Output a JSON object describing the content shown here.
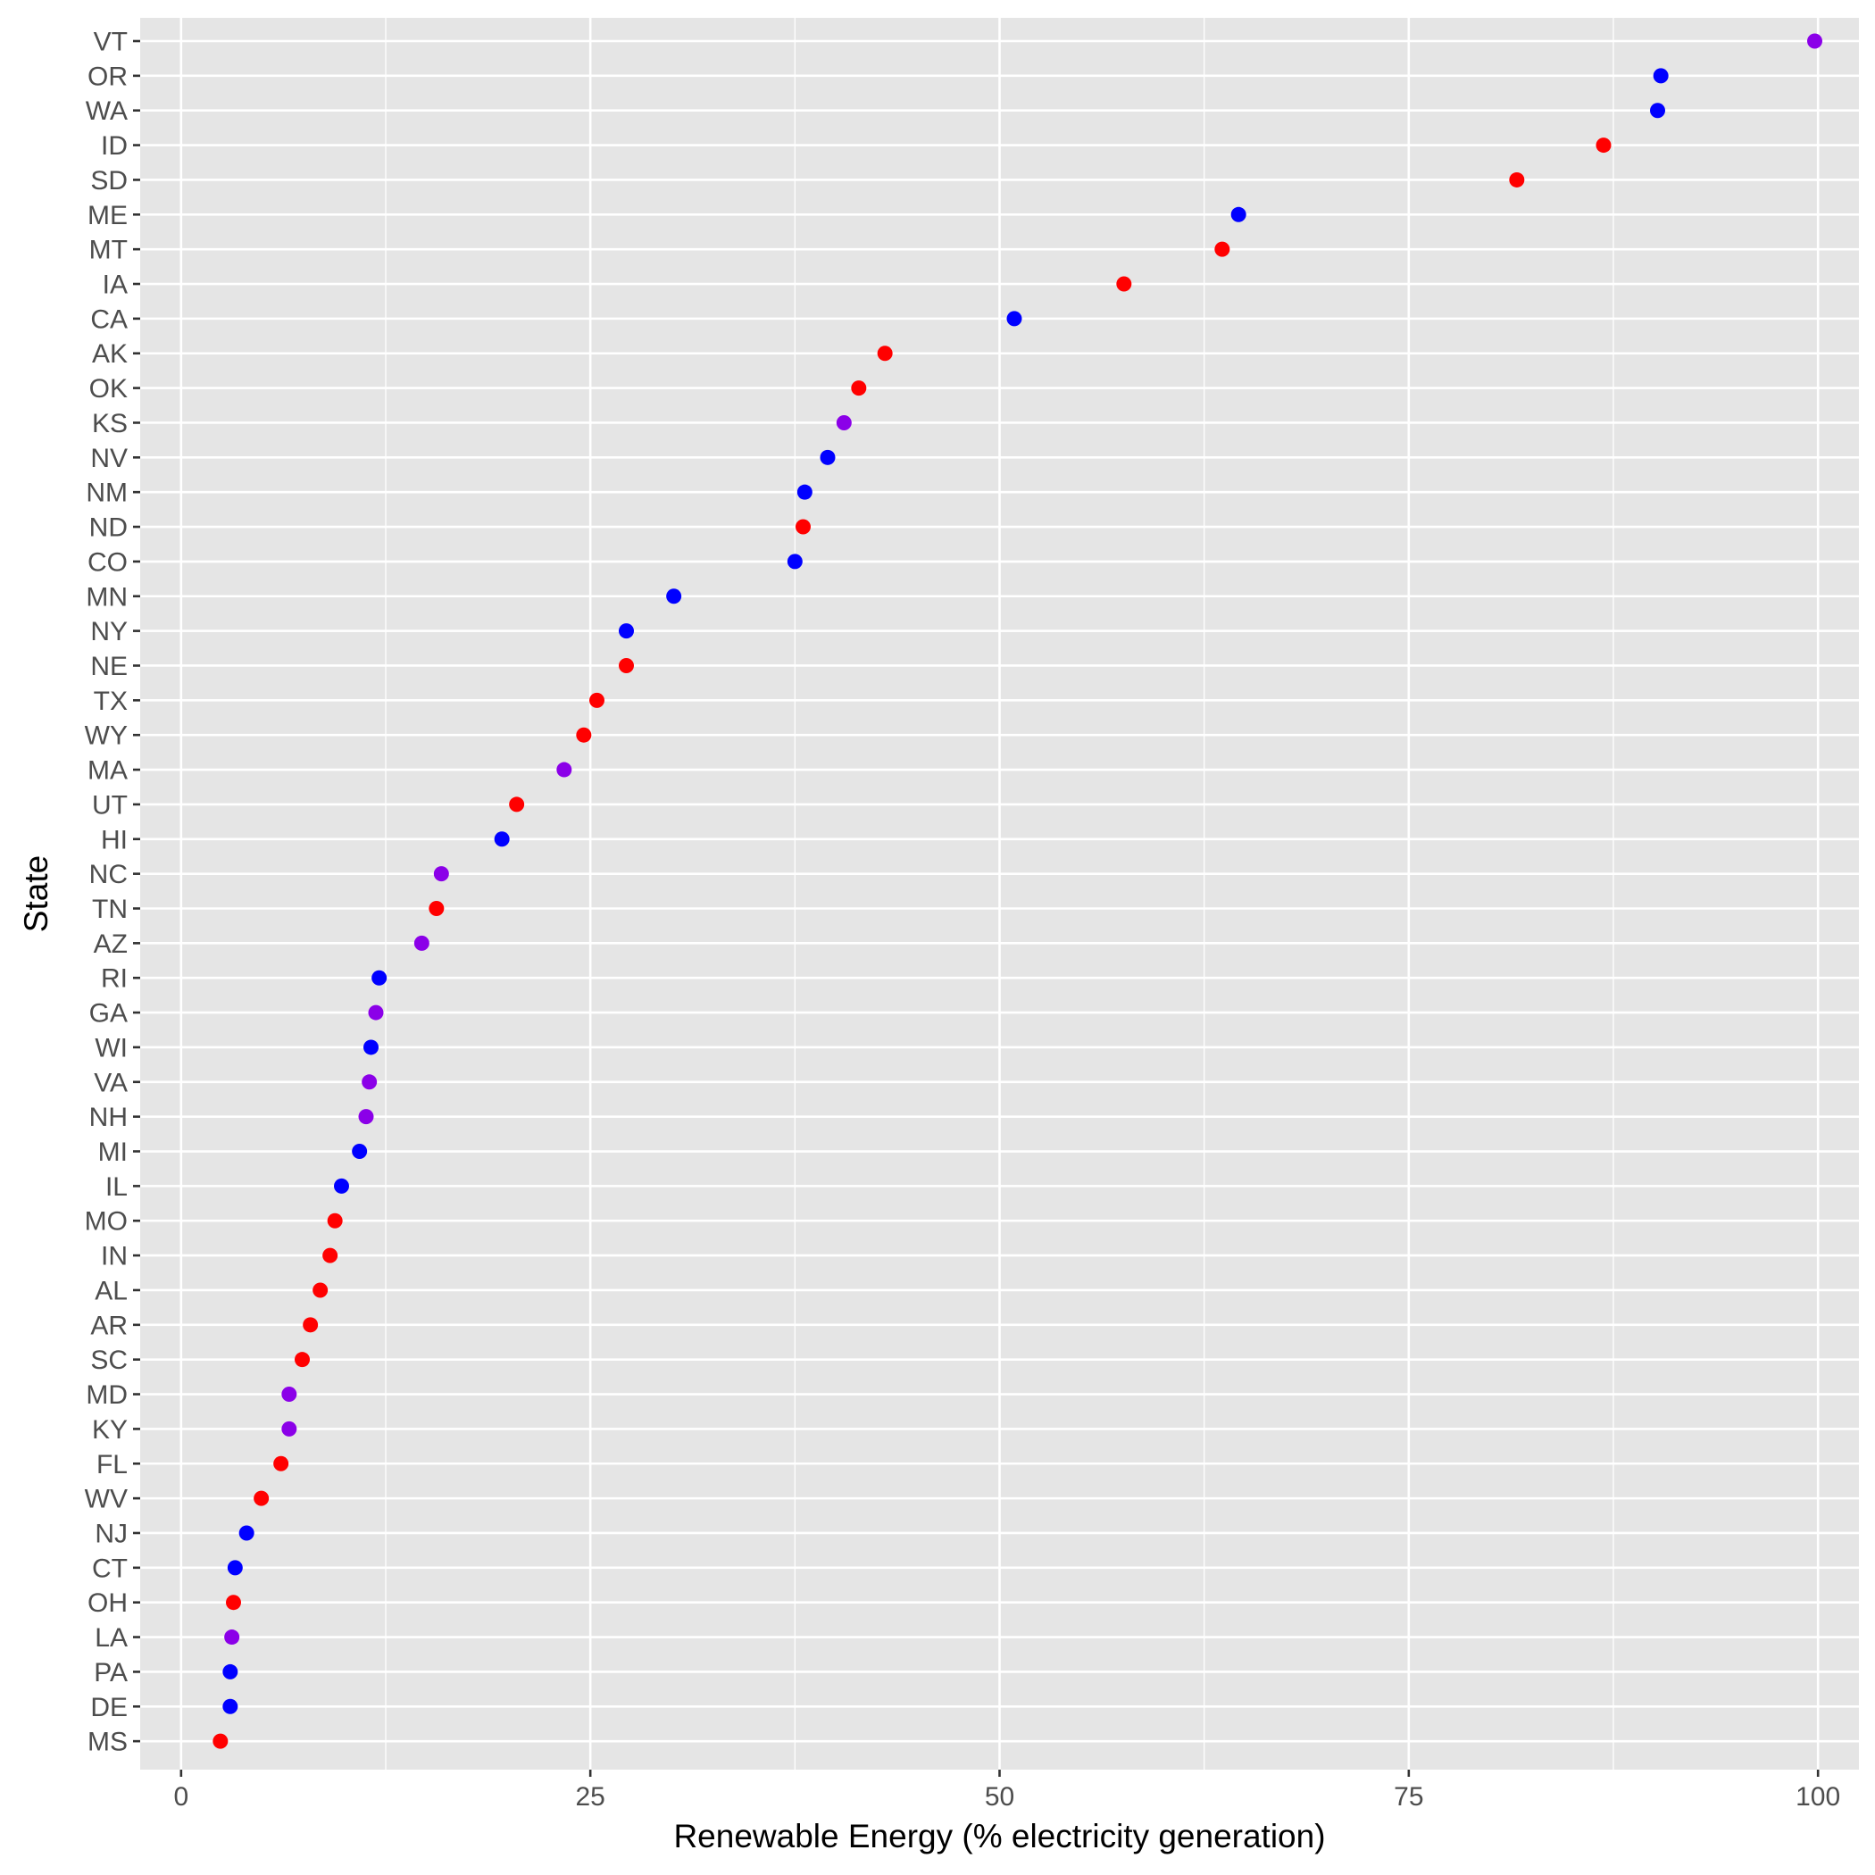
{
  "chart_data": {
    "type": "scatter",
    "xlabel": "Renewable Energy (% electricity generation)",
    "ylabel": "State",
    "xlim": [
      -2.5,
      102.5
    ],
    "x_ticks": [
      0,
      25,
      50,
      75,
      100
    ],
    "x_tick_labels": [
      "0",
      "25",
      "50",
      "75",
      "100"
    ],
    "grid": true,
    "legend": "none",
    "colors": {
      "blue": "#0000ff",
      "red": "#ff0000",
      "purple": "#8b00e8",
      "panel": "#e5e5e5",
      "grid": "#ffffff",
      "tick_text": "#4d4d4d"
    },
    "points": [
      {
        "state": "VT",
        "value": 99.8,
        "color": "purple"
      },
      {
        "state": "OR",
        "value": 90.4,
        "color": "blue"
      },
      {
        "state": "WA",
        "value": 90.2,
        "color": "blue"
      },
      {
        "state": "ID",
        "value": 86.9,
        "color": "red"
      },
      {
        "state": "SD",
        "value": 81.6,
        "color": "red"
      },
      {
        "state": "ME",
        "value": 64.6,
        "color": "blue"
      },
      {
        "state": "MT",
        "value": 63.6,
        "color": "red"
      },
      {
        "state": "IA",
        "value": 57.6,
        "color": "red"
      },
      {
        "state": "CA",
        "value": 50.9,
        "color": "blue"
      },
      {
        "state": "AK",
        "value": 43.0,
        "color": "red"
      },
      {
        "state": "OK",
        "value": 41.4,
        "color": "red"
      },
      {
        "state": "KS",
        "value": 40.5,
        "color": "purple"
      },
      {
        "state": "NV",
        "value": 39.5,
        "color": "blue"
      },
      {
        "state": "NM",
        "value": 38.1,
        "color": "blue"
      },
      {
        "state": "ND",
        "value": 38.0,
        "color": "red"
      },
      {
        "state": "CO",
        "value": 37.5,
        "color": "blue"
      },
      {
        "state": "MN",
        "value": 30.1,
        "color": "blue"
      },
      {
        "state": "NY",
        "value": 27.2,
        "color": "blue"
      },
      {
        "state": "NE",
        "value": 27.2,
        "color": "red"
      },
      {
        "state": "TX",
        "value": 25.4,
        "color": "red"
      },
      {
        "state": "WY",
        "value": 24.6,
        "color": "red"
      },
      {
        "state": "MA",
        "value": 23.4,
        "color": "purple"
      },
      {
        "state": "UT",
        "value": 20.5,
        "color": "red"
      },
      {
        "state": "HI",
        "value": 19.6,
        "color": "blue"
      },
      {
        "state": "NC",
        "value": 15.9,
        "color": "purple"
      },
      {
        "state": "TN",
        "value": 15.6,
        "color": "red"
      },
      {
        "state": "AZ",
        "value": 14.7,
        "color": "purple"
      },
      {
        "state": "RI",
        "value": 12.1,
        "color": "blue"
      },
      {
        "state": "GA",
        "value": 11.9,
        "color": "purple"
      },
      {
        "state": "WI",
        "value": 11.6,
        "color": "blue"
      },
      {
        "state": "VA",
        "value": 11.5,
        "color": "purple"
      },
      {
        "state": "NH",
        "value": 11.3,
        "color": "purple"
      },
      {
        "state": "MI",
        "value": 10.9,
        "color": "blue"
      },
      {
        "state": "IL",
        "value": 9.8,
        "color": "blue"
      },
      {
        "state": "MO",
        "value": 9.4,
        "color": "red"
      },
      {
        "state": "IN",
        "value": 9.1,
        "color": "red"
      },
      {
        "state": "AL",
        "value": 8.5,
        "color": "red"
      },
      {
        "state": "AR",
        "value": 7.9,
        "color": "red"
      },
      {
        "state": "SC",
        "value": 7.4,
        "color": "red"
      },
      {
        "state": "MD",
        "value": 6.6,
        "color": "purple"
      },
      {
        "state": "KY",
        "value": 6.6,
        "color": "purple"
      },
      {
        "state": "FL",
        "value": 6.1,
        "color": "red"
      },
      {
        "state": "WV",
        "value": 4.9,
        "color": "red"
      },
      {
        "state": "NJ",
        "value": 4.0,
        "color": "blue"
      },
      {
        "state": "CT",
        "value": 3.3,
        "color": "blue"
      },
      {
        "state": "OH",
        "value": 3.2,
        "color": "red"
      },
      {
        "state": "LA",
        "value": 3.1,
        "color": "purple"
      },
      {
        "state": "PA",
        "value": 3.0,
        "color": "blue"
      },
      {
        "state": "DE",
        "value": 3.0,
        "color": "blue"
      },
      {
        "state": "MS",
        "value": 2.4,
        "color": "red"
      }
    ]
  }
}
